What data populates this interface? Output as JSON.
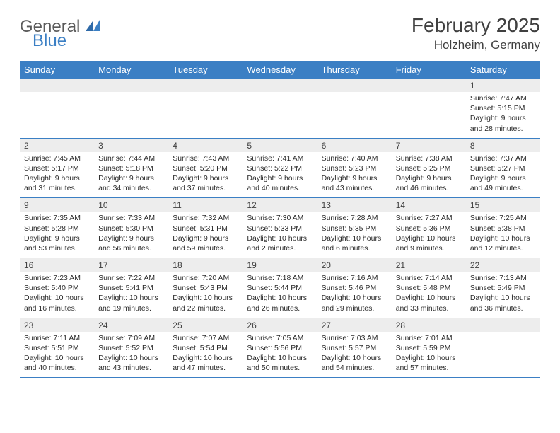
{
  "brand": {
    "word1": "General",
    "word2": "Blue"
  },
  "title": "February 2025",
  "location": "Holzheim, Germany",
  "colors": {
    "accent": "#3b7fc4",
    "band": "#ededed",
    "text": "#2b2b2b",
    "background": "#ffffff"
  },
  "dow": [
    "Sunday",
    "Monday",
    "Tuesday",
    "Wednesday",
    "Thursday",
    "Friday",
    "Saturday"
  ],
  "weeks": [
    [
      {
        "blank": true
      },
      {
        "blank": true
      },
      {
        "blank": true
      },
      {
        "blank": true
      },
      {
        "blank": true
      },
      {
        "blank": true
      },
      {
        "num": "1",
        "sunrise": "Sunrise: 7:47 AM",
        "sunset": "Sunset: 5:15 PM",
        "daylight1": "Daylight: 9 hours",
        "daylight2": "and 28 minutes."
      }
    ],
    [
      {
        "num": "2",
        "sunrise": "Sunrise: 7:45 AM",
        "sunset": "Sunset: 5:17 PM",
        "daylight1": "Daylight: 9 hours",
        "daylight2": "and 31 minutes."
      },
      {
        "num": "3",
        "sunrise": "Sunrise: 7:44 AM",
        "sunset": "Sunset: 5:18 PM",
        "daylight1": "Daylight: 9 hours",
        "daylight2": "and 34 minutes."
      },
      {
        "num": "4",
        "sunrise": "Sunrise: 7:43 AM",
        "sunset": "Sunset: 5:20 PM",
        "daylight1": "Daylight: 9 hours",
        "daylight2": "and 37 minutes."
      },
      {
        "num": "5",
        "sunrise": "Sunrise: 7:41 AM",
        "sunset": "Sunset: 5:22 PM",
        "daylight1": "Daylight: 9 hours",
        "daylight2": "and 40 minutes."
      },
      {
        "num": "6",
        "sunrise": "Sunrise: 7:40 AM",
        "sunset": "Sunset: 5:23 PM",
        "daylight1": "Daylight: 9 hours",
        "daylight2": "and 43 minutes."
      },
      {
        "num": "7",
        "sunrise": "Sunrise: 7:38 AM",
        "sunset": "Sunset: 5:25 PM",
        "daylight1": "Daylight: 9 hours",
        "daylight2": "and 46 minutes."
      },
      {
        "num": "8",
        "sunrise": "Sunrise: 7:37 AM",
        "sunset": "Sunset: 5:27 PM",
        "daylight1": "Daylight: 9 hours",
        "daylight2": "and 49 minutes."
      }
    ],
    [
      {
        "num": "9",
        "sunrise": "Sunrise: 7:35 AM",
        "sunset": "Sunset: 5:28 PM",
        "daylight1": "Daylight: 9 hours",
        "daylight2": "and 53 minutes."
      },
      {
        "num": "10",
        "sunrise": "Sunrise: 7:33 AM",
        "sunset": "Sunset: 5:30 PM",
        "daylight1": "Daylight: 9 hours",
        "daylight2": "and 56 minutes."
      },
      {
        "num": "11",
        "sunrise": "Sunrise: 7:32 AM",
        "sunset": "Sunset: 5:31 PM",
        "daylight1": "Daylight: 9 hours",
        "daylight2": "and 59 minutes."
      },
      {
        "num": "12",
        "sunrise": "Sunrise: 7:30 AM",
        "sunset": "Sunset: 5:33 PM",
        "daylight1": "Daylight: 10 hours",
        "daylight2": "and 2 minutes."
      },
      {
        "num": "13",
        "sunrise": "Sunrise: 7:28 AM",
        "sunset": "Sunset: 5:35 PM",
        "daylight1": "Daylight: 10 hours",
        "daylight2": "and 6 minutes."
      },
      {
        "num": "14",
        "sunrise": "Sunrise: 7:27 AM",
        "sunset": "Sunset: 5:36 PM",
        "daylight1": "Daylight: 10 hours",
        "daylight2": "and 9 minutes."
      },
      {
        "num": "15",
        "sunrise": "Sunrise: 7:25 AM",
        "sunset": "Sunset: 5:38 PM",
        "daylight1": "Daylight: 10 hours",
        "daylight2": "and 12 minutes."
      }
    ],
    [
      {
        "num": "16",
        "sunrise": "Sunrise: 7:23 AM",
        "sunset": "Sunset: 5:40 PM",
        "daylight1": "Daylight: 10 hours",
        "daylight2": "and 16 minutes."
      },
      {
        "num": "17",
        "sunrise": "Sunrise: 7:22 AM",
        "sunset": "Sunset: 5:41 PM",
        "daylight1": "Daylight: 10 hours",
        "daylight2": "and 19 minutes."
      },
      {
        "num": "18",
        "sunrise": "Sunrise: 7:20 AM",
        "sunset": "Sunset: 5:43 PM",
        "daylight1": "Daylight: 10 hours",
        "daylight2": "and 22 minutes."
      },
      {
        "num": "19",
        "sunrise": "Sunrise: 7:18 AM",
        "sunset": "Sunset: 5:44 PM",
        "daylight1": "Daylight: 10 hours",
        "daylight2": "and 26 minutes."
      },
      {
        "num": "20",
        "sunrise": "Sunrise: 7:16 AM",
        "sunset": "Sunset: 5:46 PM",
        "daylight1": "Daylight: 10 hours",
        "daylight2": "and 29 minutes."
      },
      {
        "num": "21",
        "sunrise": "Sunrise: 7:14 AM",
        "sunset": "Sunset: 5:48 PM",
        "daylight1": "Daylight: 10 hours",
        "daylight2": "and 33 minutes."
      },
      {
        "num": "22",
        "sunrise": "Sunrise: 7:13 AM",
        "sunset": "Sunset: 5:49 PM",
        "daylight1": "Daylight: 10 hours",
        "daylight2": "and 36 minutes."
      }
    ],
    [
      {
        "num": "23",
        "sunrise": "Sunrise: 7:11 AM",
        "sunset": "Sunset: 5:51 PM",
        "daylight1": "Daylight: 10 hours",
        "daylight2": "and 40 minutes."
      },
      {
        "num": "24",
        "sunrise": "Sunrise: 7:09 AM",
        "sunset": "Sunset: 5:52 PM",
        "daylight1": "Daylight: 10 hours",
        "daylight2": "and 43 minutes."
      },
      {
        "num": "25",
        "sunrise": "Sunrise: 7:07 AM",
        "sunset": "Sunset: 5:54 PM",
        "daylight1": "Daylight: 10 hours",
        "daylight2": "and 47 minutes."
      },
      {
        "num": "26",
        "sunrise": "Sunrise: 7:05 AM",
        "sunset": "Sunset: 5:56 PM",
        "daylight1": "Daylight: 10 hours",
        "daylight2": "and 50 minutes."
      },
      {
        "num": "27",
        "sunrise": "Sunrise: 7:03 AM",
        "sunset": "Sunset: 5:57 PM",
        "daylight1": "Daylight: 10 hours",
        "daylight2": "and 54 minutes."
      },
      {
        "num": "28",
        "sunrise": "Sunrise: 7:01 AM",
        "sunset": "Sunset: 5:59 PM",
        "daylight1": "Daylight: 10 hours",
        "daylight2": "and 57 minutes."
      },
      {
        "blank": true
      }
    ]
  ]
}
